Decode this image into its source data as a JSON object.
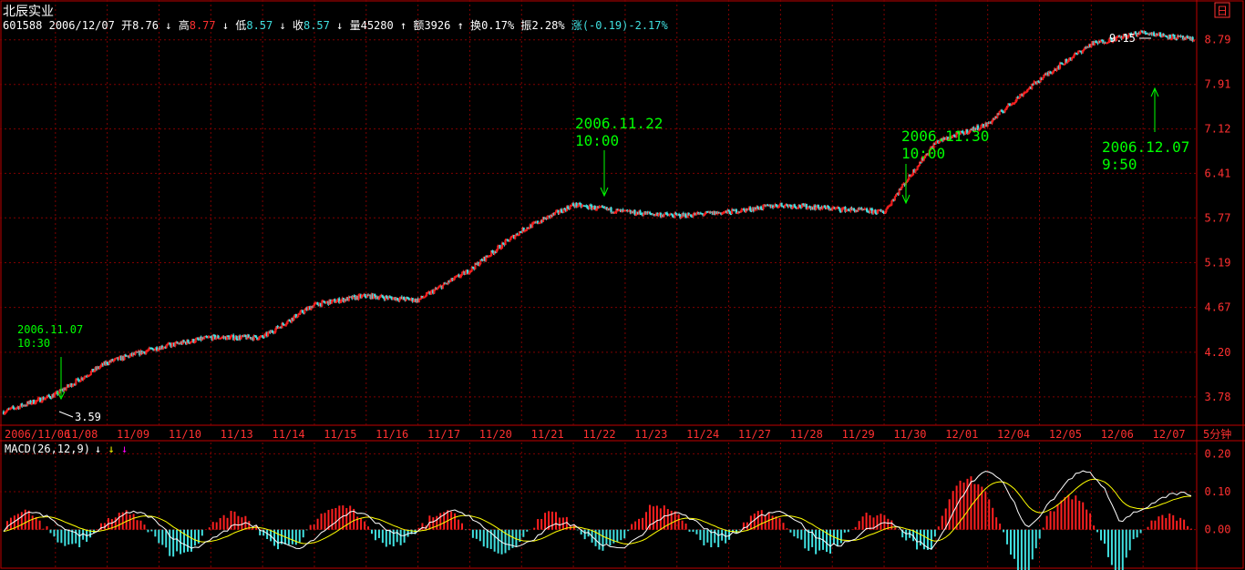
{
  "header": {
    "stock_name": "北辰实业",
    "code": "601588",
    "date": "2006/12/07",
    "open_label": "开",
    "open": "8.76",
    "high_label": "高",
    "high": "8.77",
    "low_label": "低",
    "low": "8.57",
    "close_label": "收",
    "close": "8.57",
    "volume_label": "量",
    "volume": "45280",
    "amount_label": "额",
    "amount": "3926",
    "turnover_label": "换",
    "turnover": "0.17%",
    "amplitude_label": "振",
    "amplitude": "2.28%",
    "change_label": "涨",
    "change": "(-0.19)-2.17%",
    "period_badge": "日",
    "period": "5分钟"
  },
  "macd": {
    "label": "MACD(26,12,9)",
    "ticks": [
      "0.20",
      "0.10",
      "0.00"
    ],
    "values": [
      0.2,
      0.1,
      0.0
    ],
    "ylim": [
      -0.08,
      0.22
    ],
    "colors": {
      "dif": "#ffffff",
      "dea": "#ffff00",
      "positive": "#ff2020",
      "negative": "#40e0e0"
    }
  },
  "annotations": [
    {
      "date": "2006.11.07",
      "time": "10:30"
    },
    {
      "date": "2006.11.22",
      "time": "10:00"
    },
    {
      "date": "2006.11.30",
      "time": "10:00"
    },
    {
      "date": "2006.12.07",
      "time": "9:50"
    }
  ],
  "chart_data": {
    "type": "line",
    "y_scale": "log",
    "ylim": [
      3.55,
      9.25
    ],
    "y_ticks": [
      "8.79",
      "7.91",
      "7.12",
      "6.41",
      "5.77",
      "5.19",
      "4.67",
      "4.20",
      "3.78"
    ],
    "y_tick_values": [
      8.79,
      7.91,
      7.12,
      6.41,
      5.77,
      5.19,
      4.67,
      4.2,
      3.78
    ],
    "categories": [
      "2006/11/06",
      "11/08",
      "11/09",
      "11/10",
      "11/13",
      "11/14",
      "11/15",
      "11/16",
      "11/17",
      "11/20",
      "11/21",
      "11/22",
      "11/23",
      "11/24",
      "11/27",
      "11/28",
      "11/29",
      "11/30",
      "12/01",
      "12/04",
      "12/05",
      "12/06",
      "12/07"
    ],
    "x": [
      0,
      1,
      2,
      3,
      4,
      5,
      6,
      7,
      8,
      9,
      10,
      11,
      12,
      13,
      14,
      15,
      16,
      17,
      18,
      19,
      20,
      21,
      22,
      22.9
    ],
    "series": [
      {
        "values": [
          3.65,
          3.8,
          4.1,
          4.25,
          4.35,
          4.35,
          4.7,
          4.8,
          4.75,
          5.1,
          5.6,
          5.95,
          5.85,
          5.8,
          5.85,
          5.95,
          5.9,
          5.85,
          6.9,
          7.2,
          8.0,
          8.7,
          8.95,
          8.78
        ]
      }
    ],
    "extremes": [
      {
        "label": "3.59",
        "value": 3.59
      },
      {
        "label": "9.15",
        "value": 9.15
      }
    ],
    "grid": true,
    "colors": {
      "up": "#ff2020",
      "down": "#40e0e0",
      "grid": "#800000",
      "axis": "#c00000"
    }
  }
}
